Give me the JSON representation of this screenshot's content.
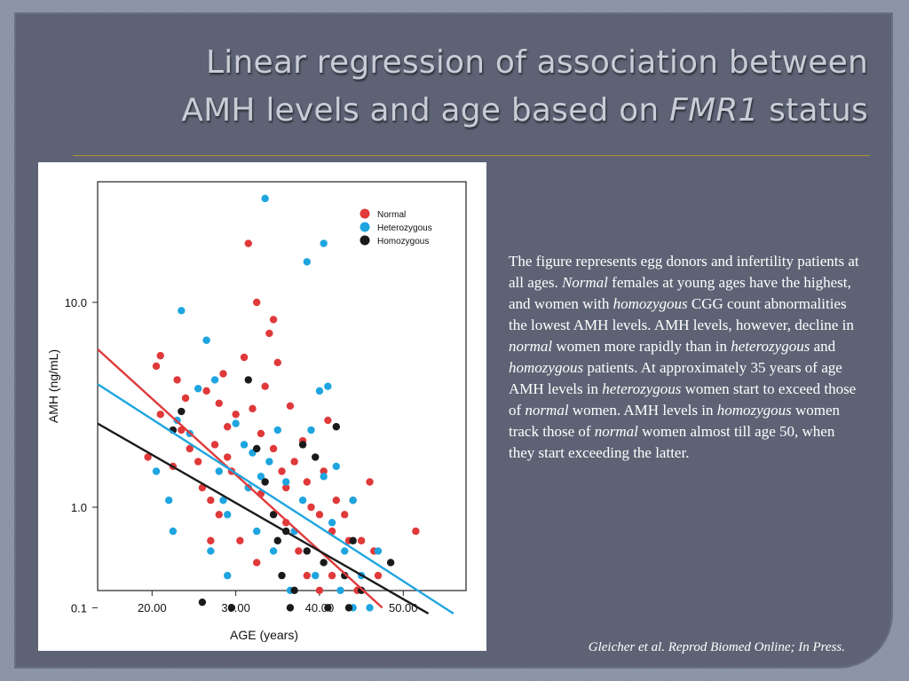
{
  "title": {
    "line1": "Linear regression of association between",
    "line2_a": "AMH levels and age based on ",
    "line2_italic": "FMR1",
    "line2_b": " status"
  },
  "colors": {
    "normal": "#e0393a",
    "heterozygous": "#1ea5e0",
    "homozygous": "#1a1a1a",
    "slide_bg": "#5d6375",
    "title_rule": "#b58a3a"
  },
  "description": {
    "s1": "The figure represents egg donors and infertility patients at all ages. ",
    "s1_it": "Normal",
    "s2": " females at young ages have the highest, and women with ",
    "s2_it": "homozygous",
    "s3": " CGG count abnormalities the lowest AMH levels. AMH levels, however, decline in ",
    "s3_it": "normal",
    "s4": " women more rapidly than in ",
    "s4_it": "heterozygous",
    "s5": " and ",
    "s5_it": "homozygous",
    "s6": " patients. At approximately 35 years of age AMH levels in ",
    "s6_it": "heterozygous",
    "s7": " women start to exceed those of ",
    "s7_it": "normal",
    "s8": " women. AMH levels in ",
    "s8_it": "homozygous",
    "s9": " women track those of ",
    "s9_it": "normal",
    "s10": " women almost till age 50, when they start exceeding the latter."
  },
  "citation": "Gleicher et al. Reprod Biomed Online; In Press.",
  "chart_data": {
    "type": "scatter",
    "xlabel": "AGE (years)",
    "ylabel": "AMH (ng/mL)",
    "x_ticks": [
      20,
      30,
      40,
      50
    ],
    "x_tick_labels": [
      "20.00",
      "30.00",
      "40.00",
      "50.00"
    ],
    "y_ticks": [
      0.1,
      1.0,
      10.0
    ],
    "y_tick_labels": [
      "0.1",
      "1.0",
      "10.0"
    ],
    "xlim": [
      13.5,
      57.5
    ],
    "y_scale": "log-like (display offset)",
    "legend_position": "top-right",
    "series": [
      {
        "name": "Normal",
        "color": "#e0393a",
        "points": [
          [
            19.5,
            1.9
          ],
          [
            20.5,
            5.2
          ],
          [
            21.0,
            5.8
          ],
          [
            23.0,
            4.5
          ],
          [
            21.0,
            3.1
          ],
          [
            22.5,
            1.7
          ],
          [
            23.5,
            2.6
          ],
          [
            24.0,
            3.7
          ],
          [
            24.5,
            2.1
          ],
          [
            25.5,
            1.8
          ],
          [
            26.0,
            1.3
          ],
          [
            27.0,
            1.1
          ],
          [
            27.5,
            2.2
          ],
          [
            28.0,
            3.5
          ],
          [
            28.5,
            4.8
          ],
          [
            29.0,
            2.7
          ],
          [
            29.5,
            1.6
          ],
          [
            30.0,
            3.1
          ],
          [
            31.0,
            5.7
          ],
          [
            31.5,
            18.0
          ],
          [
            32.0,
            3.3
          ],
          [
            32.5,
            10.0
          ],
          [
            33.0,
            2.5
          ],
          [
            33.5,
            4.2
          ],
          [
            34.0,
            7.3
          ],
          [
            35.0,
            5.4
          ],
          [
            34.5,
            2.1
          ],
          [
            35.5,
            1.6
          ],
          [
            36.0,
            1.3
          ],
          [
            36.5,
            3.4
          ],
          [
            37.0,
            1.8
          ],
          [
            38.0,
            2.3
          ],
          [
            38.5,
            1.4
          ],
          [
            39.0,
            1.0
          ],
          [
            40.0,
            0.9
          ],
          [
            40.5,
            1.6
          ],
          [
            41.0,
            2.9
          ],
          [
            41.5,
            0.7
          ],
          [
            42.0,
            1.1
          ],
          [
            43.0,
            0.9
          ],
          [
            43.5,
            0.6
          ],
          [
            44.0,
            1.1
          ],
          [
            45.0,
            0.6
          ],
          [
            46.0,
            1.4
          ],
          [
            46.5,
            0.5
          ],
          [
            47.0,
            0.3
          ],
          [
            51.5,
            0.7
          ],
          [
            28.0,
            0.9
          ],
          [
            30.5,
            0.6
          ],
          [
            31.5,
            1.3
          ],
          [
            32.5,
            0.4
          ],
          [
            33.0,
            1.2
          ],
          [
            36.0,
            0.8
          ],
          [
            37.5,
            0.5
          ],
          [
            38.5,
            0.3
          ],
          [
            40.0,
            0.2
          ],
          [
            41.5,
            0.3
          ],
          [
            44.5,
            0.2
          ],
          [
            27.0,
            0.6
          ],
          [
            26.5,
            4.0
          ],
          [
            29.0,
            1.9
          ],
          [
            34.5,
            8.4
          ]
        ]
      },
      {
        "name": "Heterozygous",
        "color": "#1ea5e0",
        "points": [
          [
            20.5,
            1.6
          ],
          [
            22.0,
            1.1
          ],
          [
            22.5,
            0.7
          ],
          [
            23.0,
            2.9
          ],
          [
            23.5,
            9.2
          ],
          [
            24.5,
            2.5
          ],
          [
            25.5,
            4.1
          ],
          [
            26.5,
            6.8
          ],
          [
            27.5,
            4.5
          ],
          [
            28.0,
            1.6
          ],
          [
            28.5,
            1.1
          ],
          [
            29.0,
            0.9
          ],
          [
            30.0,
            2.8
          ],
          [
            31.0,
            2.2
          ],
          [
            31.5,
            1.3
          ],
          [
            32.0,
            2.0
          ],
          [
            32.5,
            0.7
          ],
          [
            33.0,
            1.5
          ],
          [
            33.5,
            28.0
          ],
          [
            34.0,
            1.8
          ],
          [
            35.0,
            2.6
          ],
          [
            36.0,
            1.4
          ],
          [
            37.0,
            0.7
          ],
          [
            38.0,
            1.1
          ],
          [
            38.5,
            15.0
          ],
          [
            39.0,
            2.6
          ],
          [
            40.0,
            4.0
          ],
          [
            40.5,
            1.5
          ],
          [
            41.0,
            4.2
          ],
          [
            41.5,
            0.8
          ],
          [
            42.0,
            1.7
          ],
          [
            43.0,
            0.5
          ],
          [
            44.0,
            1.1
          ],
          [
            45.0,
            0.3
          ],
          [
            47.0,
            0.5
          ],
          [
            40.5,
            18.0
          ],
          [
            29.0,
            0.3
          ],
          [
            34.5,
            0.5
          ],
          [
            36.5,
            0.2
          ],
          [
            39.5,
            0.3
          ],
          [
            42.5,
            0.2
          ],
          [
            44.0,
            0.1
          ],
          [
            46.0,
            0.1
          ],
          [
            27.0,
            0.5
          ]
        ]
      },
      {
        "name": "Homozygous",
        "color": "#1a1a1a",
        "points": [
          [
            22.5,
            2.6
          ],
          [
            23.5,
            3.2
          ],
          [
            26.0,
            0.13
          ],
          [
            29.5,
            0.1
          ],
          [
            31.5,
            4.5
          ],
          [
            32.5,
            2.1
          ],
          [
            33.5,
            1.4
          ],
          [
            34.5,
            0.9
          ],
          [
            35.0,
            0.6
          ],
          [
            35.5,
            0.3
          ],
          [
            36.0,
            0.7
          ],
          [
            37.0,
            0.2
          ],
          [
            38.0,
            2.2
          ],
          [
            38.5,
            0.5
          ],
          [
            39.5,
            1.9
          ],
          [
            40.5,
            0.4
          ],
          [
            42.0,
            2.7
          ],
          [
            43.0,
            0.3
          ],
          [
            44.0,
            0.6
          ],
          [
            45.0,
            0.2
          ],
          [
            48.5,
            0.4
          ],
          [
            36.5,
            0.1
          ],
          [
            41.0,
            0.1
          ],
          [
            43.5,
            0.1
          ]
        ]
      }
    ],
    "regression_lines": [
      {
        "name": "Normal",
        "color": "#e0393a",
        "x": [
          13.5,
          47.5
        ],
        "y": [
          6.2,
          0.1
        ]
      },
      {
        "name": "Heterozygous",
        "color": "#1ea5e0",
        "x": [
          13.5,
          56.0
        ],
        "y": [
          4.3,
          0.07
        ]
      },
      {
        "name": "Homozygous",
        "color": "#1a1a1a",
        "x": [
          13.5,
          53.0
        ],
        "y": [
          2.8,
          0.07
        ]
      }
    ]
  }
}
